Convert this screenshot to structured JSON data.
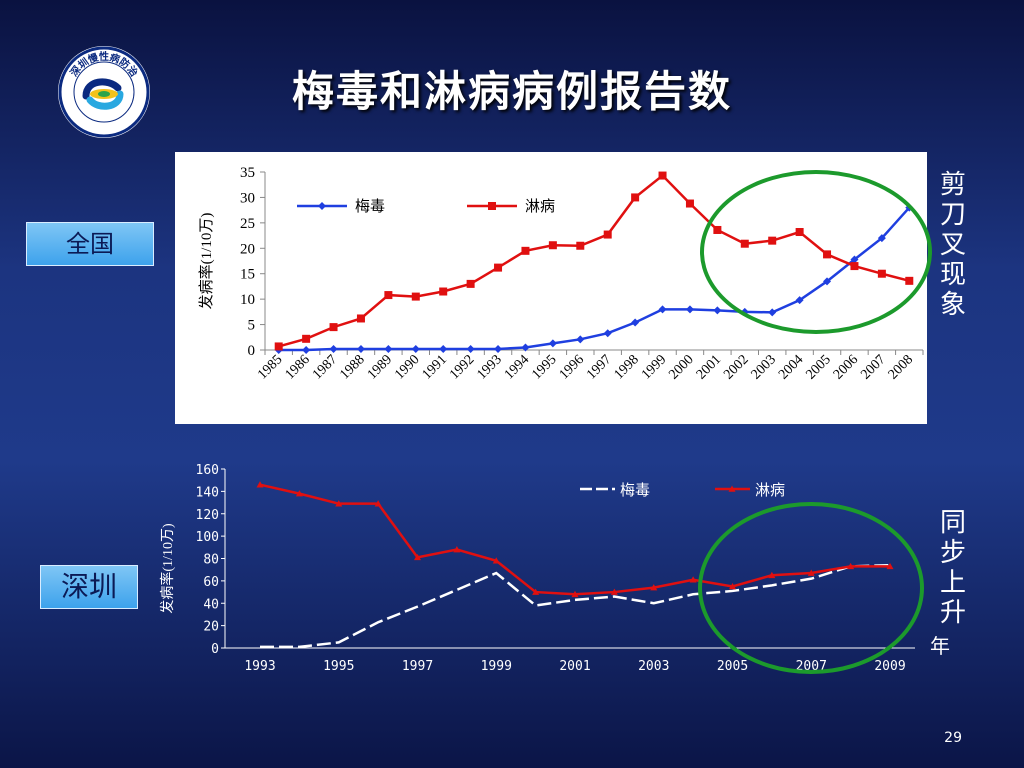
{
  "slide": {
    "title": "梅毒和淋病病例报告数",
    "page_number": "29",
    "logo_text": "深圳慢性病防治",
    "label_national": "全国",
    "label_shenzhen": "深圳",
    "annotation_scissors": "剪刀叉现象",
    "annotation_sync": "同步上升",
    "annotation_year_suffix": "年"
  },
  "colors": {
    "syphilis_national": "#1f3fe0",
    "gonorrhea_national": "#e01010",
    "syphilis_shenzhen": "#ffffff",
    "gonorrhea_shenzhen": "#e01010",
    "circle": "#1c9a2c"
  },
  "chart_data": [
    {
      "type": "line",
      "region": "全国",
      "ylabel": "发病率(1/10万)",
      "xlabel": "",
      "ylim": [
        0,
        35
      ],
      "yticks": [
        "0",
        "5",
        "10",
        "15",
        "20",
        "25",
        "30",
        "35"
      ],
      "legend_position": "top",
      "grid": false,
      "categories": [
        "1985",
        "1986",
        "1987",
        "1988",
        "1989",
        "1990",
        "1991",
        "1992",
        "1993",
        "1994",
        "1995",
        "1996",
        "1997",
        "1998",
        "1999",
        "2000",
        "2001",
        "2002",
        "2003",
        "2004",
        "2005",
        "2006",
        "2007",
        "2008"
      ],
      "series": [
        {
          "name": "梅毒",
          "marker": "diamond",
          "values": [
            0,
            0,
            0.2,
            0.2,
            0.2,
            0.2,
            0.2,
            0.2,
            0.2,
            0.5,
            1.3,
            2.1,
            3.3,
            5.4,
            8.0,
            8.0,
            7.8,
            7.5,
            7.4,
            9.8,
            13.5,
            17.8,
            22.0,
            28.0
          ]
        },
        {
          "name": "淋病",
          "marker": "square",
          "values": [
            0.7,
            2.2,
            4.5,
            6.2,
            10.8,
            10.5,
            11.5,
            13.0,
            16.2,
            19.5,
            20.6,
            20.5,
            22.7,
            30.0,
            34.3,
            28.8,
            23.6,
            20.9,
            21.5,
            23.2,
            18.8,
            16.5,
            15.0,
            13.6
          ]
        }
      ]
    },
    {
      "type": "line",
      "region": "深圳",
      "ylabel": "发病率(1/10万)",
      "xlabel": "",
      "ylim": [
        0,
        160
      ],
      "yticks": [
        "0",
        "20",
        "40",
        "60",
        "80",
        "100",
        "120",
        "140",
        "160"
      ],
      "legend_position": "top-right",
      "grid": false,
      "x": [
        1993,
        1994,
        1995,
        1996,
        1997,
        1998,
        1999,
        2000,
        2001,
        2002,
        2003,
        2004,
        2005,
        2006,
        2007,
        2008,
        2009
      ],
      "xtick_labels": [
        "1993",
        "1995",
        "1997",
        "1999",
        "2001",
        "2003",
        "2005",
        "2007",
        "2009"
      ],
      "series": [
        {
          "name": "梅毒",
          "line_style": "dashed",
          "values": [
            1,
            1,
            5,
            23,
            37,
            52,
            67,
            38,
            43,
            46,
            40,
            48,
            51,
            56,
            62,
            73,
            74
          ]
        },
        {
          "name": "淋病",
          "marker": "triangle",
          "values": [
            146,
            138,
            129,
            129,
            81,
            88,
            78,
            50,
            48,
            50,
            54,
            61,
            55,
            65,
            67,
            73,
            73
          ]
        }
      ]
    }
  ]
}
